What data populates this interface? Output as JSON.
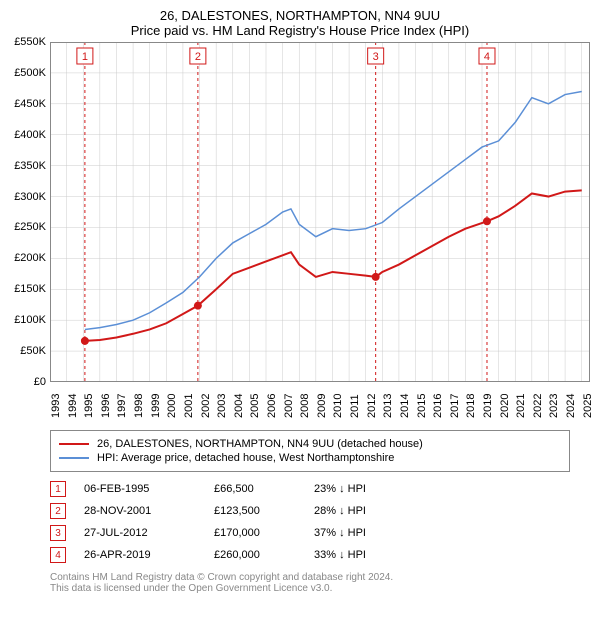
{
  "title": {
    "line1": "26, DALESTONES, NORTHAMPTON, NN4 9UU",
    "line2": "Price paid vs. HM Land Registry's House Price Index (HPI)"
  },
  "chart": {
    "type": "line",
    "background_color": "#ffffff",
    "grid_color": "#cccccc",
    "border_color": "#888888",
    "x": {
      "min": 1993,
      "max": 2025.5,
      "ticks": [
        1993,
        1994,
        1995,
        1996,
        1997,
        1998,
        1999,
        2000,
        2001,
        2002,
        2003,
        2004,
        2005,
        2006,
        2007,
        2008,
        2009,
        2010,
        2011,
        2012,
        2013,
        2014,
        2015,
        2016,
        2017,
        2018,
        2019,
        2020,
        2021,
        2022,
        2023,
        2024,
        2025
      ]
    },
    "y": {
      "min": 0,
      "max": 550000,
      "ticks": [
        0,
        50000,
        100000,
        150000,
        200000,
        250000,
        300000,
        350000,
        400000,
        450000,
        500000,
        550000
      ],
      "labels": [
        "£0",
        "£50K",
        "£100K",
        "£150K",
        "£200K",
        "£250K",
        "£300K",
        "£350K",
        "£400K",
        "£450K",
        "£500K",
        "£550K"
      ]
    },
    "series": {
      "property": {
        "color": "#d11818",
        "width": 2,
        "data": [
          [
            1995.1,
            66500
          ],
          [
            1996,
            68000
          ],
          [
            1997,
            72000
          ],
          [
            1998,
            78000
          ],
          [
            1999,
            85000
          ],
          [
            2000,
            95000
          ],
          [
            2001,
            110000
          ],
          [
            2001.9,
            123500
          ],
          [
            2003,
            150000
          ],
          [
            2004,
            175000
          ],
          [
            2005,
            185000
          ],
          [
            2006,
            195000
          ],
          [
            2007,
            205000
          ],
          [
            2007.5,
            210000
          ],
          [
            2008,
            190000
          ],
          [
            2009,
            170000
          ],
          [
            2010,
            178000
          ],
          [
            2011,
            175000
          ],
          [
            2012,
            172000
          ],
          [
            2012.6,
            170000
          ],
          [
            2013,
            178000
          ],
          [
            2014,
            190000
          ],
          [
            2015,
            205000
          ],
          [
            2016,
            220000
          ],
          [
            2017,
            235000
          ],
          [
            2018,
            248000
          ],
          [
            2019.3,
            260000
          ],
          [
            2020,
            268000
          ],
          [
            2021,
            285000
          ],
          [
            2022,
            305000
          ],
          [
            2023,
            300000
          ],
          [
            2024,
            308000
          ],
          [
            2025,
            310000
          ]
        ]
      },
      "hpi": {
        "color": "#5b8fd6",
        "width": 1.5,
        "data": [
          [
            1995.1,
            85000
          ],
          [
            1996,
            88000
          ],
          [
            1997,
            93000
          ],
          [
            1998,
            100000
          ],
          [
            1999,
            112000
          ],
          [
            2000,
            128000
          ],
          [
            2001,
            145000
          ],
          [
            2002,
            170000
          ],
          [
            2003,
            200000
          ],
          [
            2004,
            225000
          ],
          [
            2005,
            240000
          ],
          [
            2006,
            255000
          ],
          [
            2007,
            275000
          ],
          [
            2007.5,
            280000
          ],
          [
            2008,
            255000
          ],
          [
            2009,
            235000
          ],
          [
            2010,
            248000
          ],
          [
            2011,
            245000
          ],
          [
            2012,
            248000
          ],
          [
            2013,
            258000
          ],
          [
            2014,
            280000
          ],
          [
            2015,
            300000
          ],
          [
            2016,
            320000
          ],
          [
            2017,
            340000
          ],
          [
            2018,
            360000
          ],
          [
            2019,
            380000
          ],
          [
            2020,
            390000
          ],
          [
            2021,
            420000
          ],
          [
            2022,
            460000
          ],
          [
            2023,
            450000
          ],
          [
            2024,
            465000
          ],
          [
            2025,
            470000
          ]
        ]
      }
    },
    "sale_markers": [
      {
        "n": 1,
        "x": 1995.1,
        "y": 66500,
        "color": "#d11818"
      },
      {
        "n": 2,
        "x": 2001.9,
        "y": 123500,
        "color": "#d11818"
      },
      {
        "n": 3,
        "x": 2012.6,
        "y": 170000,
        "color": "#d11818"
      },
      {
        "n": 4,
        "x": 2019.3,
        "y": 260000,
        "color": "#d11818"
      }
    ],
    "vlines_color": "#d11818"
  },
  "legend": {
    "items": [
      {
        "color": "#d11818",
        "label": "26, DALESTONES, NORTHAMPTON, NN4 9UU (detached house)"
      },
      {
        "color": "#5b8fd6",
        "label": "HPI: Average price, detached house, West Northamptonshire"
      }
    ]
  },
  "sales": [
    {
      "n": "1",
      "date": "06-FEB-1995",
      "price": "£66,500",
      "hpi": "23% ↓ HPI",
      "color": "#d11818"
    },
    {
      "n": "2",
      "date": "28-NOV-2001",
      "price": "£123,500",
      "hpi": "28% ↓ HPI",
      "color": "#d11818"
    },
    {
      "n": "3",
      "date": "27-JUL-2012",
      "price": "£170,000",
      "hpi": "37% ↓ HPI",
      "color": "#d11818"
    },
    {
      "n": "4",
      "date": "26-APR-2019",
      "price": "£260,000",
      "hpi": "33% ↓ HPI",
      "color": "#d11818"
    }
  ],
  "footer": {
    "line1": "Contains HM Land Registry data © Crown copyright and database right 2024.",
    "line2": "This data is licensed under the Open Government Licence v3.0."
  }
}
